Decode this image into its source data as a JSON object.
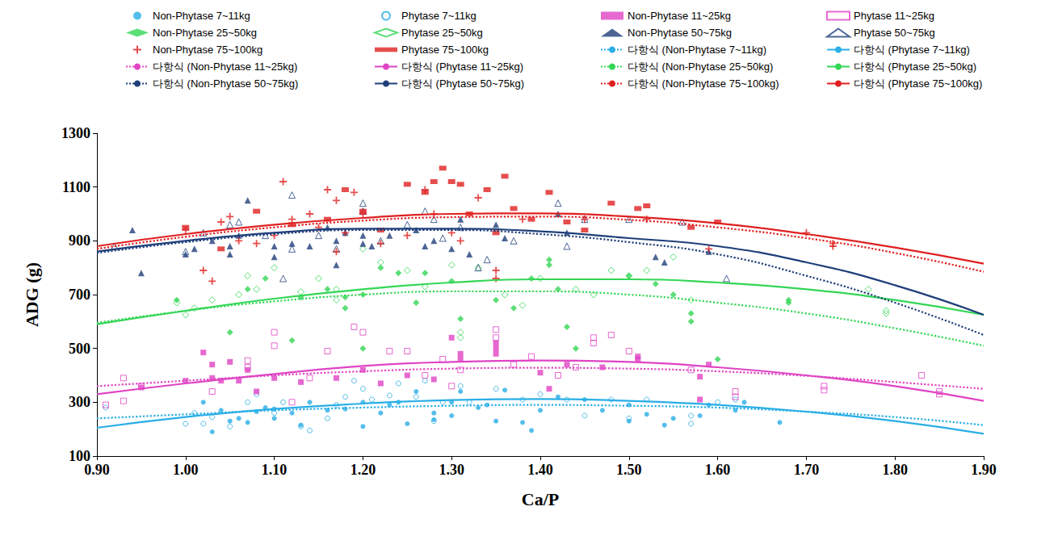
{
  "chart_data": {
    "type": "scatter",
    "x_label": "Ca/P",
    "y_label": "ADG (g)",
    "xlim": [
      0.9,
      1.9
    ],
    "xticks": [
      {
        "value": 0.9,
        "label": "0.90"
      },
      {
        "value": 1.0,
        "label": "1.00"
      },
      {
        "value": 1.1,
        "label": "1.10"
      },
      {
        "value": 1.2,
        "label": "1.20"
      },
      {
        "value": 1.3,
        "label": "1.30"
      },
      {
        "value": 1.4,
        "label": "1.40"
      },
      {
        "value": 1.5,
        "label": "1.50"
      },
      {
        "value": 1.6,
        "label": "1.60"
      },
      {
        "value": 1.7,
        "label": "1.70"
      },
      {
        "value": 1.8,
        "label": "1.80"
      },
      {
        "value": 1.9,
        "label": "1.90"
      }
    ],
    "ylim": [
      100,
      1300
    ],
    "yticks": [
      100,
      300,
      500,
      700,
      900,
      1100,
      1300
    ],
    "grid": false,
    "legend": "top",
    "series": [
      {
        "name": "Non-Phytase 7~11kg",
        "type": "scatter",
        "marker": "circle",
        "color": "#29aee6",
        "x": [
          1.03,
          1.04,
          1.05,
          1.06,
          1.07,
          1.08,
          1.09,
          1.1,
          1.1,
          1.12,
          1.14,
          1.16,
          1.18,
          1.2,
          1.2,
          1.22,
          1.23,
          1.25,
          1.26,
          1.28,
          1.28,
          1.3,
          1.3,
          1.31,
          1.33,
          1.35,
          1.36,
          1.38,
          1.39,
          1.4,
          1.42,
          1.45,
          1.47,
          1.5,
          1.5,
          1.52,
          1.54,
          1.55,
          1.58,
          1.59,
          1.62,
          1.63,
          1.67,
          1.02,
          1.13,
          1.24,
          1.34
        ],
        "values": [
          190,
          270,
          230,
          240,
          225,
          265,
          280,
          240,
          275,
          260,
          300,
          270,
          275,
          210,
          300,
          260,
          290,
          220,
          340,
          235,
          260,
          250,
          300,
          340,
          280,
          230,
          345,
          225,
          195,
          270,
          320,
          310,
          270,
          230,
          290,
          255,
          215,
          240,
          250,
          290,
          270,
          300,
          225,
          300,
          215,
          300,
          290
        ]
      },
      {
        "name": "Phytase 7~11kg",
        "type": "scatter",
        "marker": "circle-open",
        "color": "#29aee6",
        "x": [
          0.91,
          1.0,
          1.01,
          1.03,
          1.05,
          1.07,
          1.08,
          1.1,
          1.11,
          1.13,
          1.14,
          1.17,
          1.18,
          1.19,
          1.2,
          1.21,
          1.23,
          1.24,
          1.26,
          1.27,
          1.29,
          1.31,
          1.32,
          1.35,
          1.38,
          1.4,
          1.43,
          1.45,
          1.48,
          1.5,
          1.52,
          1.57,
          1.57,
          1.6,
          1.62,
          1.02,
          1.16,
          1.28
        ],
        "values": [
          280,
          220,
          260,
          245,
          210,
          300,
          330,
          260,
          300,
          210,
          195,
          290,
          320,
          380,
          350,
          310,
          325,
          370,
          320,
          380,
          300,
          360,
          300,
          350,
          310,
          330,
          310,
          250,
          310,
          240,
          310,
          250,
          220,
          300,
          310,
          220,
          240,
          230
        ]
      },
      {
        "name": "Non-Phytase 11~25kg",
        "type": "scatter",
        "marker": "square",
        "color": "#e044c4",
        "x": [
          0.95,
          1.0,
          1.02,
          1.03,
          1.03,
          1.04,
          1.05,
          1.06,
          1.07,
          1.08,
          1.1,
          1.13,
          1.17,
          1.2,
          1.22,
          1.25,
          1.28,
          1.3,
          1.31,
          1.31,
          1.35,
          1.35,
          1.35,
          1.4,
          1.41,
          1.43,
          1.47,
          1.51,
          1.51,
          1.58,
          1.59,
          1.58
        ],
        "values": [
          355,
          380,
          485,
          390,
          440,
          380,
          450,
          380,
          420,
          340,
          390,
          375,
          390,
          420,
          370,
          400,
          385,
          540,
          480,
          460,
          480,
          500,
          520,
          410,
          350,
          440,
          430,
          470,
          460,
          395,
          440,
          310
        ]
      },
      {
        "name": "Phytase 11~25kg",
        "type": "scatter",
        "marker": "square-open",
        "color": "#e044c4",
        "x": [
          0.91,
          0.93,
          0.93,
          0.95,
          1.03,
          1.07,
          1.07,
          1.1,
          1.1,
          1.12,
          1.14,
          1.16,
          1.19,
          1.2,
          1.23,
          1.25,
          1.27,
          1.29,
          1.3,
          1.31,
          1.35,
          1.35,
          1.37,
          1.39,
          1.42,
          1.44,
          1.46,
          1.46,
          1.48,
          1.5,
          1.57,
          1.62,
          1.62,
          1.72,
          1.72,
          1.83,
          1.85,
          1.85
        ],
        "values": [
          290,
          390,
          305,
          360,
          340,
          455,
          430,
          560,
          510,
          300,
          390,
          490,
          580,
          560,
          490,
          490,
          400,
          460,
          360,
          420,
          570,
          540,
          440,
          470,
          400,
          430,
          520,
          540,
          550,
          490,
          420,
          340,
          320,
          360,
          345,
          400,
          340,
          330
        ]
      },
      {
        "name": "Non-Phytase 25~50kg",
        "type": "scatter",
        "marker": "diamond",
        "color": "#33d655",
        "x": [
          0.99,
          1.05,
          1.07,
          1.09,
          1.12,
          1.13,
          1.16,
          1.18,
          1.18,
          1.2,
          1.22,
          1.24,
          1.26,
          1.27,
          1.3,
          1.31,
          1.35,
          1.37,
          1.39,
          1.41,
          1.41,
          1.42,
          1.43,
          1.44,
          1.5,
          1.53,
          1.55,
          1.57,
          1.57,
          1.6,
          1.68,
          1.68,
          1.2
        ],
        "values": [
          680,
          560,
          720,
          760,
          530,
          690,
          720,
          690,
          650,
          700,
          800,
          780,
          670,
          780,
          750,
          610,
          680,
          650,
          760,
          810,
          830,
          720,
          580,
          500,
          770,
          740,
          700,
          630,
          600,
          460,
          680,
          670,
          500
        ]
      },
      {
        "name": "Phytase 25~50kg",
        "type": "scatter",
        "marker": "diamond-open",
        "color": "#33d655",
        "x": [
          0.99,
          1.0,
          1.01,
          1.03,
          1.06,
          1.07,
          1.08,
          1.1,
          1.13,
          1.15,
          1.17,
          1.17,
          1.2,
          1.22,
          1.25,
          1.27,
          1.3,
          1.31,
          1.31,
          1.33,
          1.36,
          1.38,
          1.4,
          1.44,
          1.46,
          1.48,
          1.5,
          1.52,
          1.55,
          1.57,
          1.77,
          1.79,
          1.79
        ],
        "values": [
          670,
          625,
          650,
          680,
          700,
          770,
          720,
          800,
          710,
          760,
          720,
          680,
          870,
          820,
          790,
          730,
          810,
          540,
          560,
          800,
          700,
          660,
          760,
          720,
          700,
          790,
          770,
          790,
          840,
          680,
          720,
          640,
          630
        ]
      },
      {
        "name": "Non-Phytase 50~75kg",
        "type": "scatter",
        "marker": "triangle",
        "color": "#1f3f7a",
        "x": [
          0.94,
          0.95,
          1.0,
          1.01,
          1.03,
          1.05,
          1.05,
          1.06,
          1.07,
          1.1,
          1.1,
          1.12,
          1.14,
          1.16,
          1.17,
          1.17,
          1.18,
          1.2,
          1.2,
          1.21,
          1.23,
          1.26,
          1.27,
          1.28,
          1.3,
          1.31,
          1.32,
          1.35,
          1.36,
          1.42,
          1.43,
          1.53,
          1.54,
          1.59
        ],
        "values": [
          940,
          780,
          850,
          870,
          900,
          850,
          880,
          920,
          1050,
          840,
          880,
          890,
          880,
          950,
          810,
          900,
          930,
          890,
          920,
          880,
          920,
          940,
          880,
          900,
          870,
          980,
          850,
          960,
          910,
          1000,
          930,
          840,
          820,
          860
        ]
      },
      {
        "name": "Phytase 50~75kg",
        "type": "scatter",
        "marker": "triangle-open",
        "color": "#1f3f7a",
        "x": [
          0.92,
          1.0,
          1.02,
          1.05,
          1.06,
          1.09,
          1.11,
          1.12,
          1.12,
          1.15,
          1.17,
          1.2,
          1.22,
          1.25,
          1.27,
          1.28,
          1.29,
          1.31,
          1.33,
          1.34,
          1.37,
          1.42,
          1.43,
          1.45,
          1.5,
          1.56,
          1.61,
          1.2
        ],
        "values": [
          880,
          860,
          930,
          960,
          970,
          920,
          760,
          1070,
          870,
          920,
          870,
          1040,
          900,
          960,
          1010,
          980,
          910,
          950,
          800,
          830,
          900,
          1040,
          880,
          980,
          980,
          970,
          760,
          1010
        ]
      },
      {
        "name": "Non-Phytase 75~100kg",
        "type": "scatter",
        "marker": "plus",
        "color": "#e02020",
        "x": [
          1.0,
          1.02,
          1.03,
          1.04,
          1.05,
          1.06,
          1.08,
          1.1,
          1.11,
          1.12,
          1.14,
          1.15,
          1.16,
          1.17,
          1.17,
          1.18,
          1.19,
          1.2,
          1.22,
          1.25,
          1.27,
          1.28,
          1.3,
          1.31,
          1.33,
          1.35,
          1.35,
          1.38,
          1.45,
          1.52,
          1.59,
          1.7,
          1.73,
          1.73
        ],
        "values": [
          940,
          790,
          750,
          970,
          990,
          900,
          890,
          920,
          1120,
          980,
          1000,
          950,
          1090,
          1050,
          860,
          930,
          1080,
          1000,
          890,
          920,
          1090,
          1000,
          930,
          900,
          1060,
          790,
          760,
          980,
          980,
          980,
          870,
          930,
          890,
          880
        ]
      },
      {
        "name": "Phytase 75~100kg",
        "type": "scatter",
        "marker": "dash",
        "color": "#e02020",
        "x": [
          1.0,
          1.04,
          1.08,
          1.12,
          1.16,
          1.18,
          1.2,
          1.22,
          1.25,
          1.27,
          1.28,
          1.29,
          1.3,
          1.31,
          1.32,
          1.34,
          1.36,
          1.37,
          1.39,
          1.41,
          1.43,
          1.45,
          1.48,
          1.51,
          1.52,
          1.57,
          1.6,
          1.35
        ],
        "values": [
          950,
          870,
          1010,
          960,
          980,
          1090,
          1010,
          940,
          1110,
          1080,
          1120,
          1170,
          1120,
          1110,
          1000,
          1090,
          1140,
          1020,
          980,
          1080,
          970,
          940,
          1040,
          1020,
          1030,
          950,
          970,
          930
        ]
      },
      {
        "name": "다항식 (Non-Phytase 7~11kg)",
        "type": "line",
        "line_style": "dotted",
        "color": "#29aee6",
        "x": [
          0.9,
          1.0,
          1.1,
          1.2,
          1.3,
          1.4,
          1.5,
          1.6,
          1.7,
          1.8,
          1.9
        ],
        "values": [
          240,
          255,
          270,
          280,
          287,
          290,
          287,
          280,
          265,
          245,
          215
        ]
      },
      {
        "name": "다항식 (Phytase 7~11kg)",
        "type": "line",
        "line_style": "solid",
        "color": "#29aee6",
        "x": [
          0.9,
          1.0,
          1.1,
          1.2,
          1.3,
          1.4,
          1.5,
          1.6,
          1.7,
          1.8,
          1.9
        ],
        "values": [
          205,
          245,
          275,
          295,
          308,
          312,
          305,
          290,
          265,
          230,
          183
        ]
      },
      {
        "name": "다항식 (Non-Phytase 11~25kg)",
        "type": "line",
        "line_style": "dotted",
        "color": "#e044c4",
        "x": [
          0.9,
          1.0,
          1.1,
          1.2,
          1.3,
          1.4,
          1.5,
          1.6,
          1.7,
          1.8,
          1.9
        ],
        "values": [
          360,
          380,
          400,
          415,
          425,
          428,
          425,
          415,
          398,
          375,
          350
        ]
      },
      {
        "name": "다항식 (Phytase 11~25kg)",
        "type": "line",
        "line_style": "solid",
        "color": "#e044c4",
        "x": [
          0.9,
          1.0,
          1.1,
          1.2,
          1.3,
          1.4,
          1.5,
          1.6,
          1.7,
          1.8,
          1.9
        ],
        "values": [
          330,
          370,
          405,
          435,
          450,
          455,
          450,
          430,
          400,
          360,
          305
        ]
      },
      {
        "name": "다항식 (Non-Phytase 25~50kg)",
        "type": "line",
        "line_style": "dotted",
        "color": "#33d655",
        "x": [
          0.9,
          1.0,
          1.1,
          1.2,
          1.3,
          1.4,
          1.5,
          1.6,
          1.7,
          1.8,
          1.9
        ],
        "values": [
          595,
          640,
          675,
          700,
          712,
          712,
          700,
          670,
          630,
          575,
          510
        ]
      },
      {
        "name": "다항식 (Phytase 25~50kg)",
        "type": "line",
        "line_style": "solid",
        "color": "#33d655",
        "x": [
          0.9,
          1.0,
          1.1,
          1.2,
          1.3,
          1.4,
          1.5,
          1.6,
          1.7,
          1.8,
          1.9
        ],
        "values": [
          590,
          640,
          685,
          720,
          745,
          757,
          757,
          745,
          720,
          680,
          625
        ]
      },
      {
        "name": "다항식 (Non-Phytase 50~75kg)",
        "type": "line",
        "line_style": "dotted",
        "color": "#1f3f7a",
        "x": [
          0.9,
          1.0,
          1.1,
          1.2,
          1.3,
          1.4,
          1.5,
          1.6,
          1.7,
          1.8,
          1.9
        ],
        "values": [
          855,
          895,
          925,
          940,
          940,
          925,
          895,
          850,
          770,
          670,
          550
        ]
      },
      {
        "name": "다항식 (Phytase 50~75kg)",
        "type": "line",
        "line_style": "solid",
        "color": "#1f3f7a",
        "x": [
          0.9,
          1.0,
          1.1,
          1.2,
          1.3,
          1.4,
          1.5,
          1.6,
          1.7,
          1.8,
          1.9
        ],
        "values": [
          860,
          900,
          930,
          945,
          945,
          935,
          910,
          880,
          820,
          735,
          625
        ]
      },
      {
        "name": "다항식 (Non-Phytase 75~100kg)",
        "type": "line",
        "line_style": "dotted",
        "color": "#e02020",
        "x": [
          0.9,
          1.0,
          1.1,
          1.2,
          1.3,
          1.4,
          1.5,
          1.6,
          1.7,
          1.8,
          1.9
        ],
        "values": [
          870,
          915,
          950,
          975,
          988,
          990,
          978,
          950,
          910,
          855,
          785
        ]
      },
      {
        "name": "다항식 (Phytase 75~100kg)",
        "type": "line",
        "line_style": "solid",
        "color": "#e02020",
        "x": [
          0.9,
          1.0,
          1.1,
          1.2,
          1.3,
          1.4,
          1.5,
          1.6,
          1.7,
          1.8,
          1.9
        ],
        "values": [
          880,
          925,
          960,
          985,
          1000,
          1002,
          990,
          965,
          925,
          875,
          815
        ]
      }
    ]
  }
}
